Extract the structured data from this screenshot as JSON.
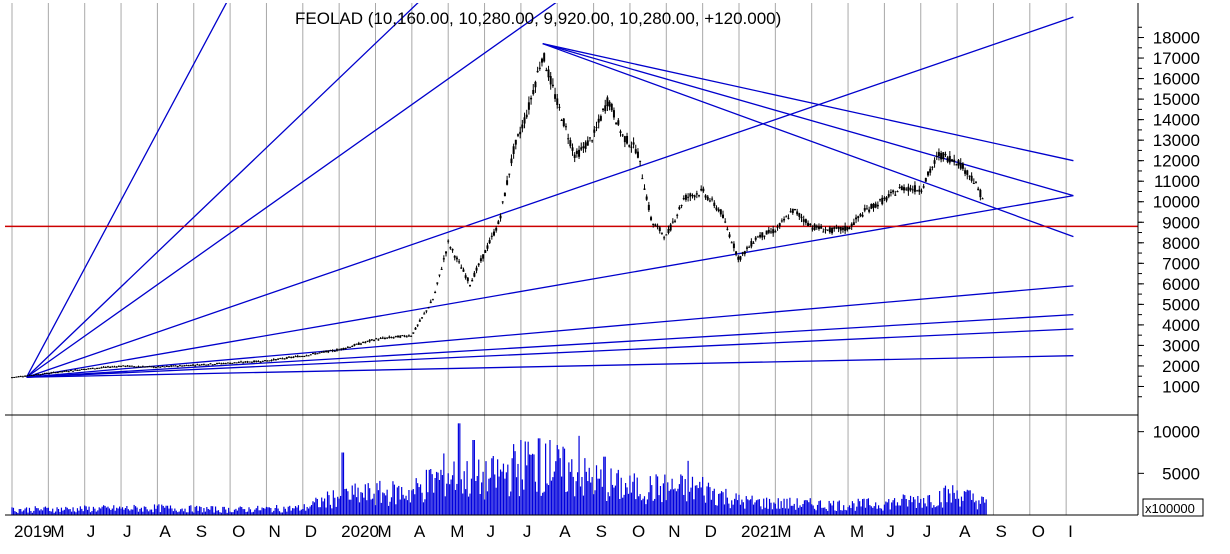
{
  "colors": {
    "background": "#ffffff",
    "grid": "#a8a8a8",
    "price": "#000000",
    "trendline": "#0000cc",
    "support_line": "#cc0000",
    "volume": "#0000dd",
    "frame": "#000000"
  },
  "chart_data": {
    "type": "candlestick",
    "title": "FEOLAD (10,160.00, 10,280.00, 9,920.00, 10,280.00, +120.000)",
    "price_axis": {
      "ticks": [
        "18000",
        "17000",
        "16000",
        "15000",
        "14000",
        "13000",
        "12000",
        "11000",
        "10000",
        "9000",
        "8000",
        "7000",
        "6000",
        "5000",
        "4000",
        "3000",
        "2000",
        "1000"
      ],
      "ylim": [
        0,
        19000
      ]
    },
    "volume_axis": {
      "ticks": [
        "10000",
        "5000"
      ],
      "unit_label": "x100000",
      "ylim": [
        0,
        12000
      ]
    },
    "x_axis": {
      "months": [
        "2019",
        "M",
        "J",
        "J",
        "A",
        "S",
        "O",
        "N",
        "D",
        "2020",
        "M",
        "A",
        "M",
        "J",
        "J",
        "A",
        "S",
        "O",
        "N",
        "D",
        "2021",
        "M",
        "A",
        "M",
        "J",
        "J",
        "A",
        "S",
        "O",
        "I"
      ]
    },
    "close_approx": [
      {
        "x": 0,
        "y": 1450
      },
      {
        "x": 1,
        "y": 1650
      },
      {
        "x": 2,
        "y": 1850
      },
      {
        "x": 3,
        "y": 2000
      },
      {
        "x": 4,
        "y": 1950
      },
      {
        "x": 5,
        "y": 2050
      },
      {
        "x": 6,
        "y": 2150
      },
      {
        "x": 7,
        "y": 2250
      },
      {
        "x": 8,
        "y": 2500
      },
      {
        "x": 9,
        "y": 2800
      },
      {
        "x": 10,
        "y": 3300
      },
      {
        "x": 11,
        "y": 3500
      },
      {
        "x": 11.6,
        "y": 5300
      },
      {
        "x": 12,
        "y": 8000
      },
      {
        "x": 12.6,
        "y": 6000
      },
      {
        "x": 13,
        "y": 7500
      },
      {
        "x": 13.4,
        "y": 9000
      },
      {
        "x": 13.8,
        "y": 12500
      },
      {
        "x": 14.2,
        "y": 14500
      },
      {
        "x": 14.6,
        "y": 17200
      },
      {
        "x": 15,
        "y": 14800
      },
      {
        "x": 15.5,
        "y": 12200
      },
      {
        "x": 16,
        "y": 13200
      },
      {
        "x": 16.4,
        "y": 15000
      },
      {
        "x": 16.8,
        "y": 13200
      },
      {
        "x": 17.2,
        "y": 12500
      },
      {
        "x": 17.6,
        "y": 9000
      },
      {
        "x": 18,
        "y": 8300
      },
      {
        "x": 18.5,
        "y": 10200
      },
      {
        "x": 19,
        "y": 10500
      },
      {
        "x": 19.5,
        "y": 9500
      },
      {
        "x": 20,
        "y": 7200
      },
      {
        "x": 20.5,
        "y": 8300
      },
      {
        "x": 21,
        "y": 8600
      },
      {
        "x": 21.5,
        "y": 9600
      },
      {
        "x": 22,
        "y": 8800
      },
      {
        "x": 22.5,
        "y": 8600
      },
      {
        "x": 23,
        "y": 8700
      },
      {
        "x": 23.5,
        "y": 9600
      },
      {
        "x": 24,
        "y": 10100
      },
      {
        "x": 24.5,
        "y": 10700
      },
      {
        "x": 25,
        "y": 10600
      },
      {
        "x": 25.5,
        "y": 12300
      },
      {
        "x": 26,
        "y": 12000
      },
      {
        "x": 26.4,
        "y": 11200
      },
      {
        "x": 26.7,
        "y": 10200
      }
    ],
    "trendlines": [
      {
        "name": "fan-1",
        "from": [
          0.4,
          1450
        ],
        "to": [
          7.5,
          25000
        ]
      },
      {
        "name": "fan-2",
        "from": [
          0.4,
          1450
        ],
        "to": [
          14.3,
          25000
        ]
      },
      {
        "name": "fan-3",
        "from": [
          0.4,
          1450
        ],
        "to": [
          16,
          21000
        ]
      },
      {
        "name": "fan-4",
        "from": [
          0.4,
          1450
        ],
        "to": [
          29.2,
          19000
        ]
      },
      {
        "name": "fan-5",
        "from": [
          0.4,
          1450
        ],
        "to": [
          29.2,
          10300
        ]
      },
      {
        "name": "fan-6",
        "from": [
          0.4,
          1450
        ],
        "to": [
          29.2,
          5900
        ]
      },
      {
        "name": "fan-7",
        "from": [
          0.4,
          1450
        ],
        "to": [
          29.2,
          4500
        ]
      },
      {
        "name": "fan-8",
        "from": [
          0.4,
          1450
        ],
        "to": [
          29.2,
          3800
        ]
      },
      {
        "name": "fan-9",
        "from": [
          0.4,
          1450
        ],
        "to": [
          29.2,
          2500
        ]
      },
      {
        "name": "top-1",
        "from": [
          14.6,
          17700
        ],
        "to": [
          29.2,
          12000
        ]
      },
      {
        "name": "top-2",
        "from": [
          14.6,
          17700
        ],
        "to": [
          29.2,
          10300
        ]
      },
      {
        "name": "top-3",
        "from": [
          14.6,
          17700
        ],
        "to": [
          29.2,
          8300
        ]
      }
    ],
    "support_level": 8800,
    "volume_approx": [
      {
        "x": 0,
        "y": 700
      },
      {
        "x": 2,
        "y": 800
      },
      {
        "x": 4,
        "y": 900
      },
      {
        "x": 6,
        "y": 700
      },
      {
        "x": 8,
        "y": 900
      },
      {
        "x": 9,
        "y": 2500
      },
      {
        "x": 10,
        "y": 2800
      },
      {
        "x": 11,
        "y": 3000
      },
      {
        "x": 12,
        "y": 5500
      },
      {
        "x": 13,
        "y": 4500
      },
      {
        "x": 14,
        "y": 6500
      },
      {
        "x": 15,
        "y": 6000
      },
      {
        "x": 16,
        "y": 4500
      },
      {
        "x": 17,
        "y": 3500
      },
      {
        "x": 18,
        "y": 3500
      },
      {
        "x": 19,
        "y": 3500
      },
      {
        "x": 20,
        "y": 1800
      },
      {
        "x": 21,
        "y": 1500
      },
      {
        "x": 22,
        "y": 1400
      },
      {
        "x": 23,
        "y": 1300
      },
      {
        "x": 24,
        "y": 1500
      },
      {
        "x": 25,
        "y": 2000
      },
      {
        "x": 26,
        "y": 2800
      },
      {
        "x": 26.8,
        "y": 1500
      }
    ],
    "volume_spikes": [
      {
        "x": 9.1,
        "y": 7500
      },
      {
        "x": 12.3,
        "y": 11000
      },
      {
        "x": 12.7,
        "y": 9000
      },
      {
        "x": 14.2,
        "y": 8800
      },
      {
        "x": 14.5,
        "y": 9200
      },
      {
        "x": 14.8,
        "y": 9000
      },
      {
        "x": 15.6,
        "y": 9500
      },
      {
        "x": 16.3,
        "y": 7000
      },
      {
        "x": 18.6,
        "y": 6500
      }
    ]
  }
}
